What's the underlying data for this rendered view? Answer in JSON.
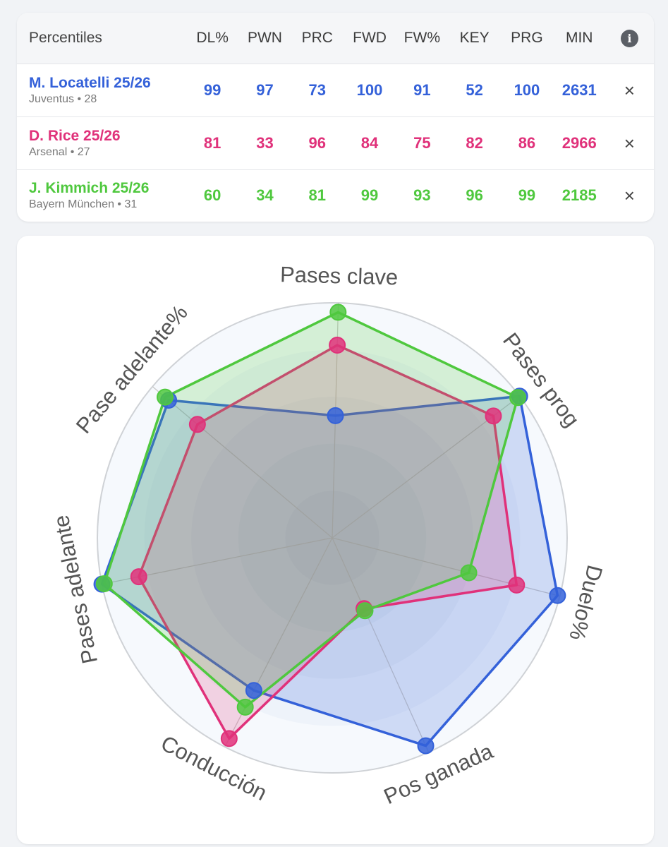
{
  "table": {
    "header_label": "Percentiles",
    "columns": [
      "DL%",
      "PWN",
      "PRC",
      "FWD",
      "FW%",
      "KEY",
      "PRG",
      "MIN"
    ],
    "info_icon": "info-icon",
    "close_icon": "×"
  },
  "players": [
    {
      "name": "M. Locatelli 25/26",
      "meta": "Juventus • 28",
      "color": "#3461d9",
      "stats": [
        "99",
        "97",
        "73",
        "100",
        "91",
        "52",
        "100",
        "2631"
      ]
    },
    {
      "name": "D. Rice 25/26",
      "meta": "Arsenal • 27",
      "color": "#e0317a",
      "stats": [
        "81",
        "33",
        "96",
        "84",
        "75",
        "82",
        "86",
        "2966"
      ]
    },
    {
      "name": "J. Kimmich 25/26",
      "meta": "Bayern München • 31",
      "color": "#4fc83e",
      "stats": [
        "60",
        "34",
        "81",
        "99",
        "93",
        "96",
        "99",
        "2185"
      ]
    }
  ],
  "chart_data": {
    "type": "radar",
    "axes": [
      "Pases clave",
      "Pases prog",
      "Duelo%",
      "Pos ganada",
      "Conducción",
      "Pases adelante",
      "Pase adelante%"
    ],
    "range": [
      0,
      100
    ],
    "series": [
      {
        "name": "M. Locatelli 25/26",
        "color": "#3461d9",
        "values": [
          52,
          100,
          99,
          97,
          73,
          100,
          91
        ]
      },
      {
        "name": "D. Rice 25/26",
        "color": "#e0317a",
        "values": [
          82,
          86,
          81,
          33,
          96,
          84,
          75
        ]
      },
      {
        "name": "J. Kimmich 25/26",
        "color": "#4fc83e",
        "values": [
          96,
          99,
          60,
          34,
          81,
          99,
          93
        ]
      }
    ]
  }
}
